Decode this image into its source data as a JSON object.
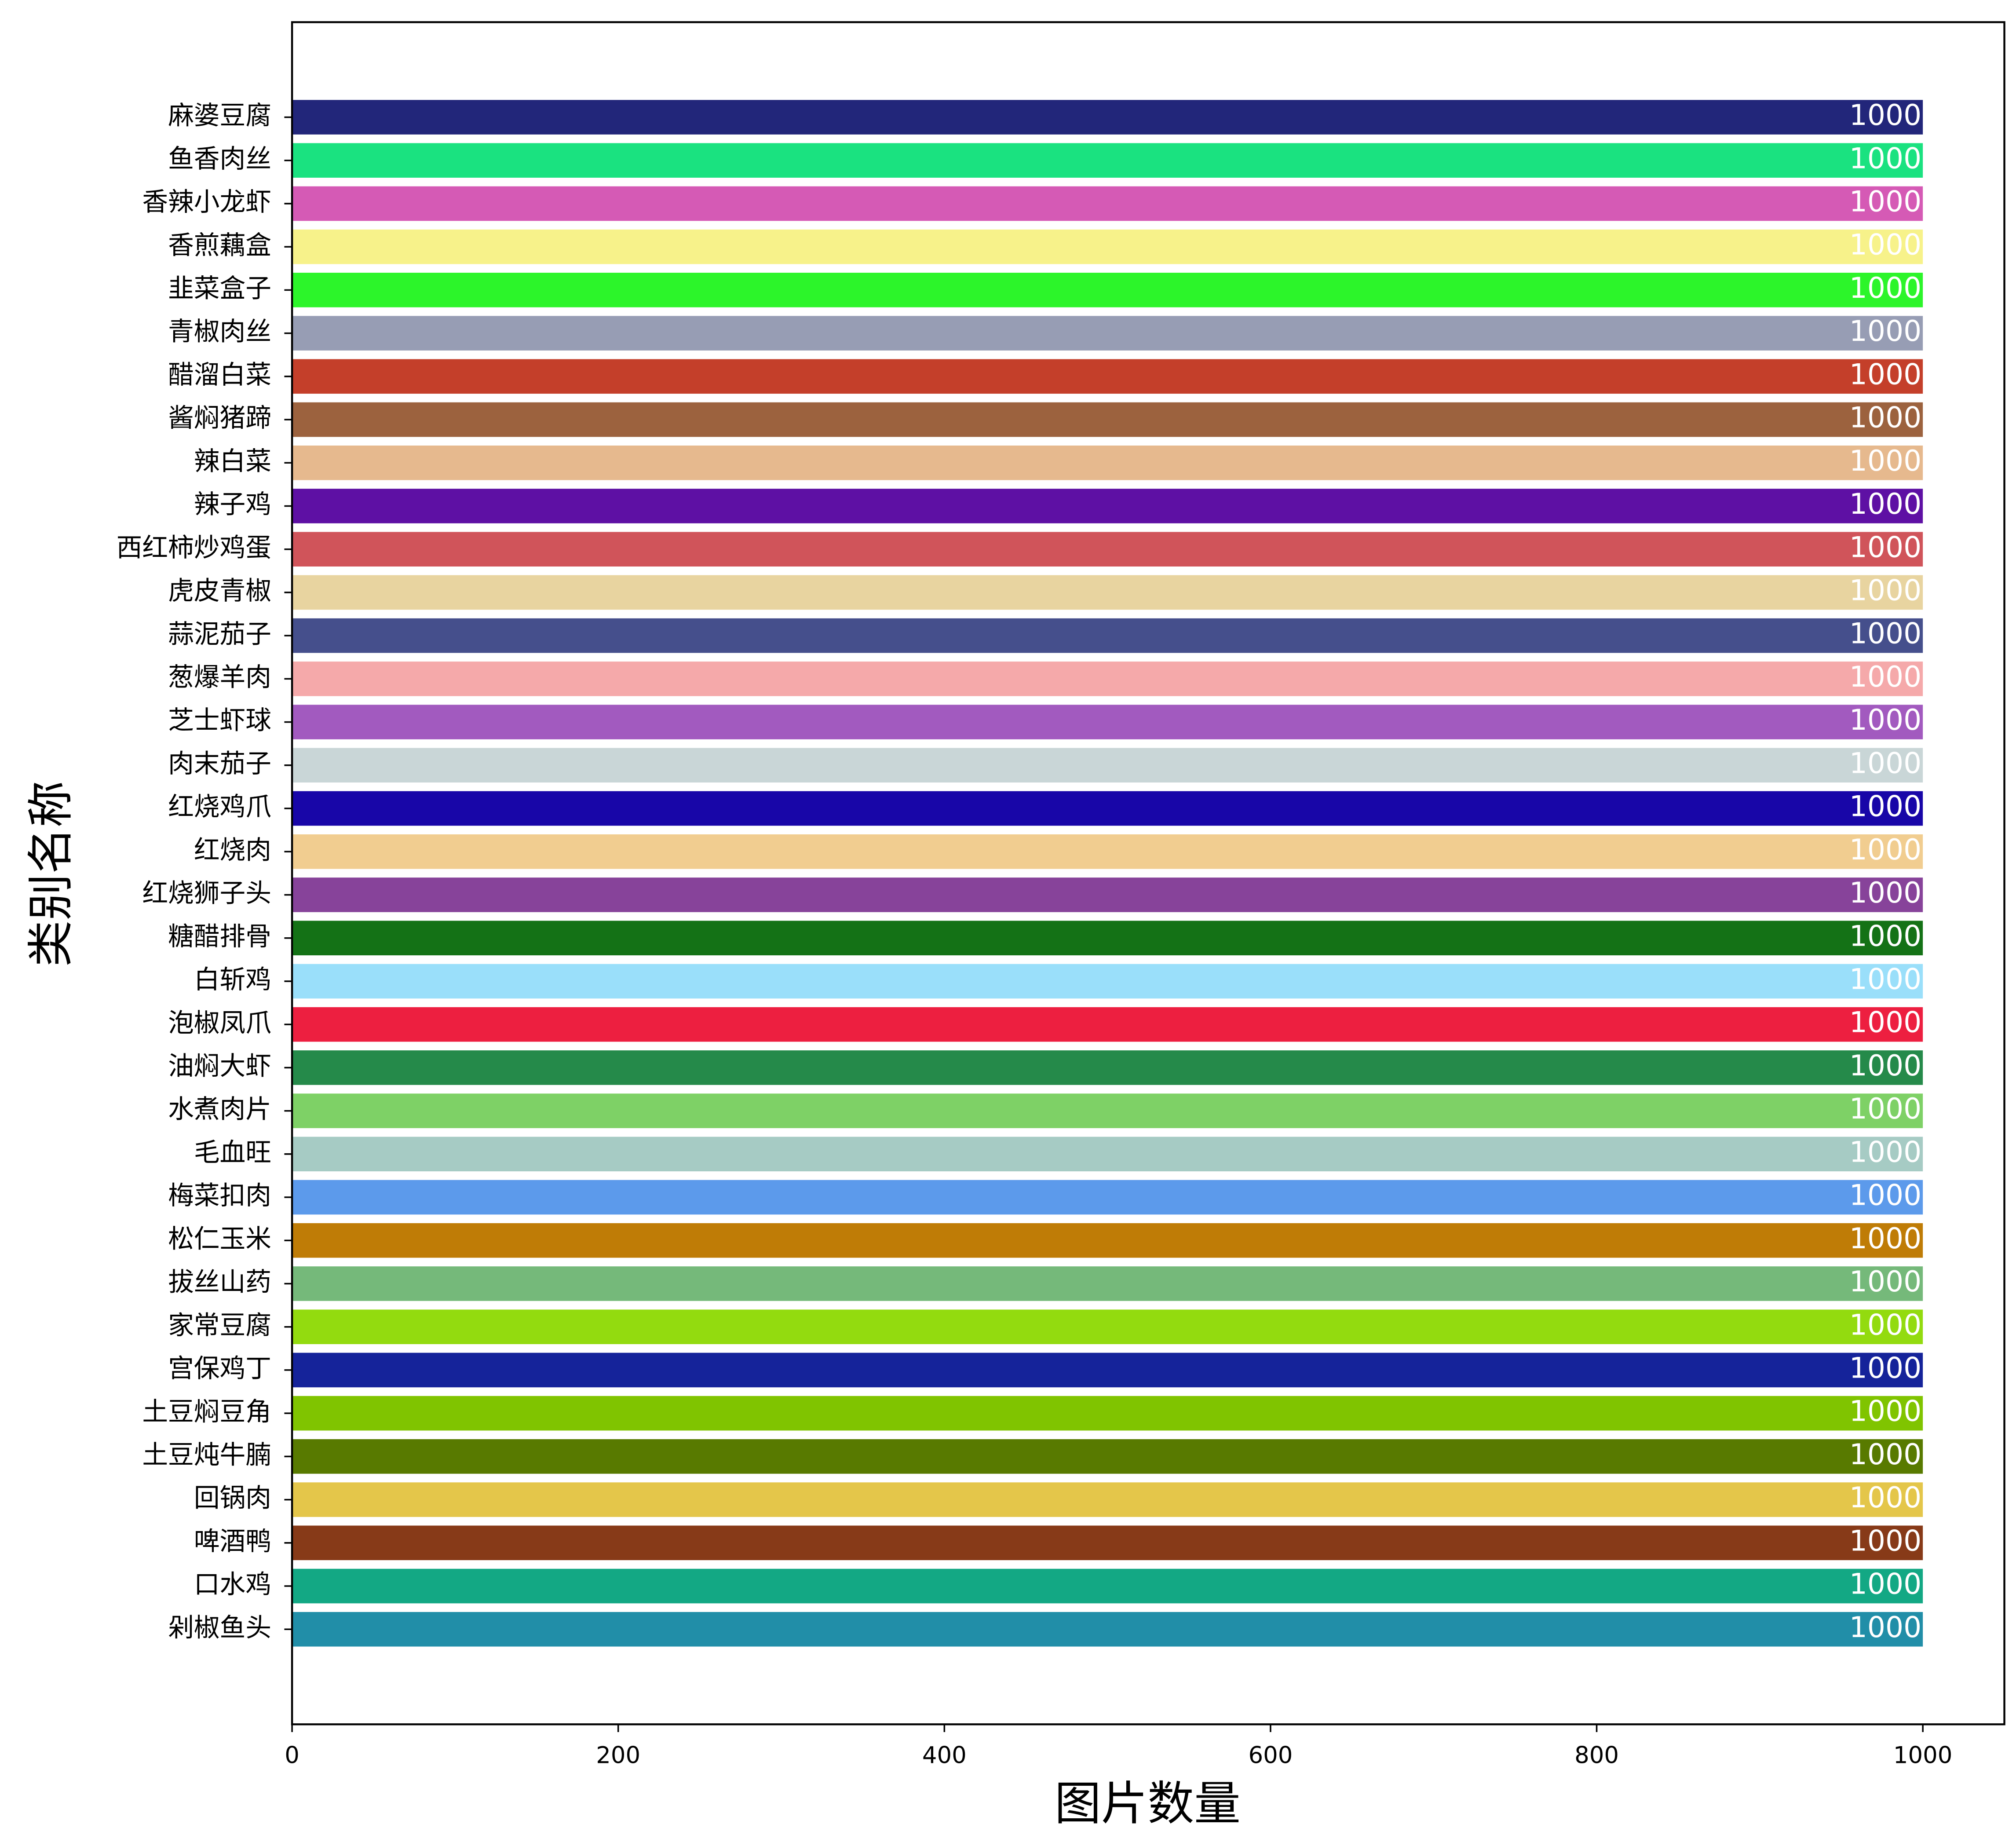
{
  "chart_data": {
    "type": "barh",
    "xlabel": "图片数量",
    "ylabel": "类别名称",
    "categories": [
      "麻婆豆腐",
      "鱼香肉丝",
      "香辣小龙虾",
      "香煎藕盒",
      "韭菜盒子",
      "青椒肉丝",
      "醋溜白菜",
      "酱焖猪蹄",
      "辣白菜",
      "辣子鸡",
      "西红柿炒鸡蛋",
      "虎皮青椒",
      "蒜泥茄子",
      "葱爆羊肉",
      "芝士虾球",
      "肉末茄子",
      "红烧鸡爪",
      "红烧肉",
      "红烧狮子头",
      "糖醋排骨",
      "白斩鸡",
      "泡椒凤爪",
      "油焖大虾",
      "水煮肉片",
      "毛血旺",
      "梅菜扣肉",
      "松仁玉米",
      "拔丝山药",
      "家常豆腐",
      "宫保鸡丁",
      "土豆焖豆角",
      "土豆炖牛腩",
      "回锅肉",
      "啤酒鸭",
      "口水鸡",
      "剁椒鱼头"
    ],
    "values": [
      1000,
      1000,
      1000,
      1000,
      1000,
      1000,
      1000,
      1000,
      1000,
      1000,
      1000,
      1000,
      1000,
      1000,
      1000,
      1000,
      1000,
      1000,
      1000,
      1000,
      1000,
      1000,
      1000,
      1000,
      1000,
      1000,
      1000,
      1000,
      1000,
      1000,
      1000,
      1000,
      1000,
      1000,
      1000,
      1000
    ],
    "colors": [
      "#22267a",
      "#1ae280",
      "#d55ab5",
      "#f7f28a",
      "#2cf52a",
      "#979db4",
      "#c43f2a",
      "#9c623e",
      "#e6b98e",
      "#5e10a4",
      "#d0545a",
      "#e8d4a0",
      "#454f8c",
      "#f5a9aa",
      "#a25abf",
      "#c9d6d7",
      "#1806a8",
      "#f1cd90",
      "#87439a",
      "#147216",
      "#9adffa",
      "#ed1f40",
      "#258a4a",
      "#7ed166",
      "#a6cbc4",
      "#5c9aeb",
      "#bf7c06",
      "#75b97a",
      "#93db0f",
      "#15239a",
      "#80c400",
      "#587a00",
      "#e4c64a",
      "#873a18",
      "#13a884",
      "#218ea8"
    ],
    "xlim": [
      0,
      1050
    ],
    "xticks": [
      0,
      200,
      400,
      600,
      800,
      1000
    ],
    "grid": false
  }
}
